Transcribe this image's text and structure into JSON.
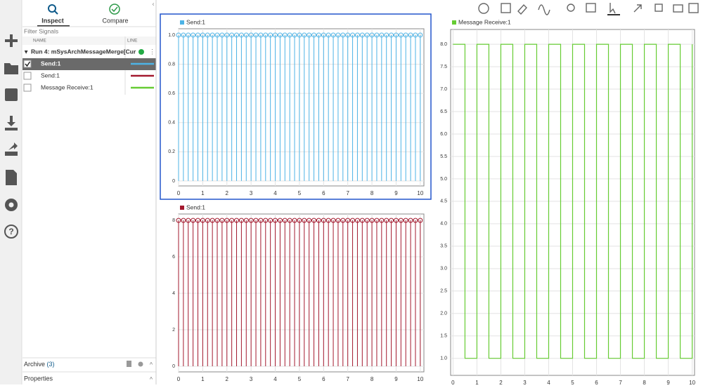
{
  "ui": {
    "tabs": [
      "Inspect",
      "Compare"
    ],
    "filter": "Filter Signals",
    "columns": [
      "NAME",
      "LINE"
    ],
    "run": "Run 4: mSysArchMessageMerge[Cur",
    "signals": [
      {
        "name": "Send:1",
        "color": "#4db3e6",
        "checked": true
      },
      {
        "name": "Send:1",
        "color": "#a3192e",
        "checked": false
      },
      {
        "name": "Message Receive:1",
        "color": "#66cc33",
        "checked": false
      }
    ],
    "archive": "Archive",
    "archive_count": "(3)",
    "properties": "Properties"
  },
  "chart_data": [
    {
      "type": "stem",
      "grid": true,
      "xlim": [
        0,
        10.15
      ],
      "ylim": [
        -0.034,
        1.043
      ],
      "xticks": [
        0,
        1,
        2,
        3,
        4,
        5,
        6,
        7,
        8,
        9,
        10
      ],
      "yticks": [
        0,
        0.2,
        0.4,
        0.6,
        0.8,
        {
          "value": 1,
          "label": "1.0"
        }
      ],
      "x": [
        0,
        0.2,
        0.4,
        0.6,
        0.8,
        1,
        1.2,
        1.4,
        1.6,
        1.8,
        2,
        2.2,
        2.4,
        2.6,
        2.8,
        3,
        3.2,
        3.4,
        3.6,
        3.8,
        4,
        4.2,
        4.4,
        4.6,
        4.8,
        5,
        5.2,
        5.4,
        5.6,
        5.8,
        6,
        6.2,
        6.4,
        6.6,
        6.8,
        7,
        7.2,
        7.4,
        7.6,
        7.8,
        8,
        8.2,
        8.4,
        8.6,
        8.8,
        9,
        9.2,
        9.4,
        9.6,
        9.8,
        10
      ],
      "series": [
        {
          "name": "Send:1",
          "color": "#4db3e6",
          "values": [
            1,
            1,
            1,
            1,
            1,
            1,
            1,
            1,
            1,
            1,
            1,
            1,
            1,
            1,
            1,
            1,
            1,
            1,
            1,
            1,
            1,
            1,
            1,
            1,
            1,
            1,
            1,
            1,
            1,
            1,
            1,
            1,
            1,
            1,
            1,
            1,
            1,
            1,
            1,
            1,
            1,
            1,
            1,
            1,
            1,
            1,
            1,
            1,
            1,
            1,
            1
          ]
        }
      ]
    },
    {
      "type": "stem",
      "grid": true,
      "xlim": [
        0,
        10.15
      ],
      "ylim": [
        -0.31,
        8.35
      ],
      "xticks": [
        0,
        1,
        2,
        3,
        4,
        5,
        6,
        7,
        8,
        9,
        10
      ],
      "yticks": [
        0,
        2,
        4,
        6,
        8
      ],
      "x": [
        0,
        0.2,
        0.4,
        0.6,
        0.8,
        1,
        1.2,
        1.4,
        1.6,
        1.8,
        2,
        2.2,
        2.4,
        2.6,
        2.8,
        3,
        3.2,
        3.4,
        3.6,
        3.8,
        4,
        4.2,
        4.4,
        4.6,
        4.8,
        5,
        5.2,
        5.4,
        5.6,
        5.8,
        6,
        6.2,
        6.4,
        6.6,
        6.8,
        7,
        7.2,
        7.4,
        7.6,
        7.8,
        8,
        8.2,
        8.4,
        8.6,
        8.8,
        9,
        9.2,
        9.4,
        9.6,
        9.8,
        10
      ],
      "series": [
        {
          "name": "Send:1",
          "color": "#a3192e",
          "values": [
            8,
            8,
            8,
            8,
            8,
            8,
            8,
            8,
            8,
            8,
            8,
            8,
            8,
            8,
            8,
            8,
            8,
            8,
            8,
            8,
            8,
            8,
            8,
            8,
            8,
            8,
            8,
            8,
            8,
            8,
            8,
            8,
            8,
            8,
            8,
            8,
            8,
            8,
            8,
            8,
            8,
            8,
            8,
            8,
            8,
            8,
            8,
            8,
            8,
            8,
            8
          ]
        }
      ]
    },
    {
      "type": "line",
      "grid": true,
      "xlim": [
        -0.1,
        10.1
      ],
      "ylim": [
        0.62,
        8.33
      ],
      "xticks": [
        0,
        1,
        2,
        3,
        4,
        5,
        6,
        7,
        8,
        9,
        10
      ],
      "yticks": [
        {
          "value": 1,
          "label": "1.0"
        },
        1.5,
        {
          "value": 2,
          "label": "2.0"
        },
        2.5,
        {
          "value": 3,
          "label": "3.0"
        },
        3.5,
        {
          "value": 4,
          "label": "4.0"
        },
        4.5,
        {
          "value": 5,
          "label": "5.0"
        },
        5.5,
        {
          "value": 6,
          "label": "6.0"
        },
        6.5,
        {
          "value": 7,
          "label": "7.0"
        },
        7.5,
        {
          "value": 8,
          "label": "8.0"
        }
      ],
      "x": [
        0,
        0.5,
        0.5,
        1,
        1,
        1.5,
        1.5,
        2,
        2,
        2.5,
        2.5,
        3,
        3,
        3.5,
        3.5,
        4,
        4,
        4.5,
        4.5,
        5,
        5,
        5.5,
        5.5,
        6,
        6,
        6.5,
        6.5,
        7,
        7,
        7.5,
        7.5,
        8,
        8,
        8.5,
        8.5,
        9,
        9,
        9.5,
        9.5,
        10,
        10
      ],
      "series": [
        {
          "name": "Message Receive:1",
          "color": "#66cc33",
          "values": [
            8,
            8,
            1,
            1,
            8,
            8,
            1,
            1,
            8,
            8,
            1,
            1,
            8,
            8,
            1,
            1,
            8,
            8,
            1,
            1,
            8,
            8,
            1,
            1,
            8,
            8,
            1,
            1,
            8,
            8,
            1,
            1,
            8,
            8,
            1,
            1,
            8,
            8,
            1,
            1,
            8
          ]
        }
      ]
    }
  ]
}
